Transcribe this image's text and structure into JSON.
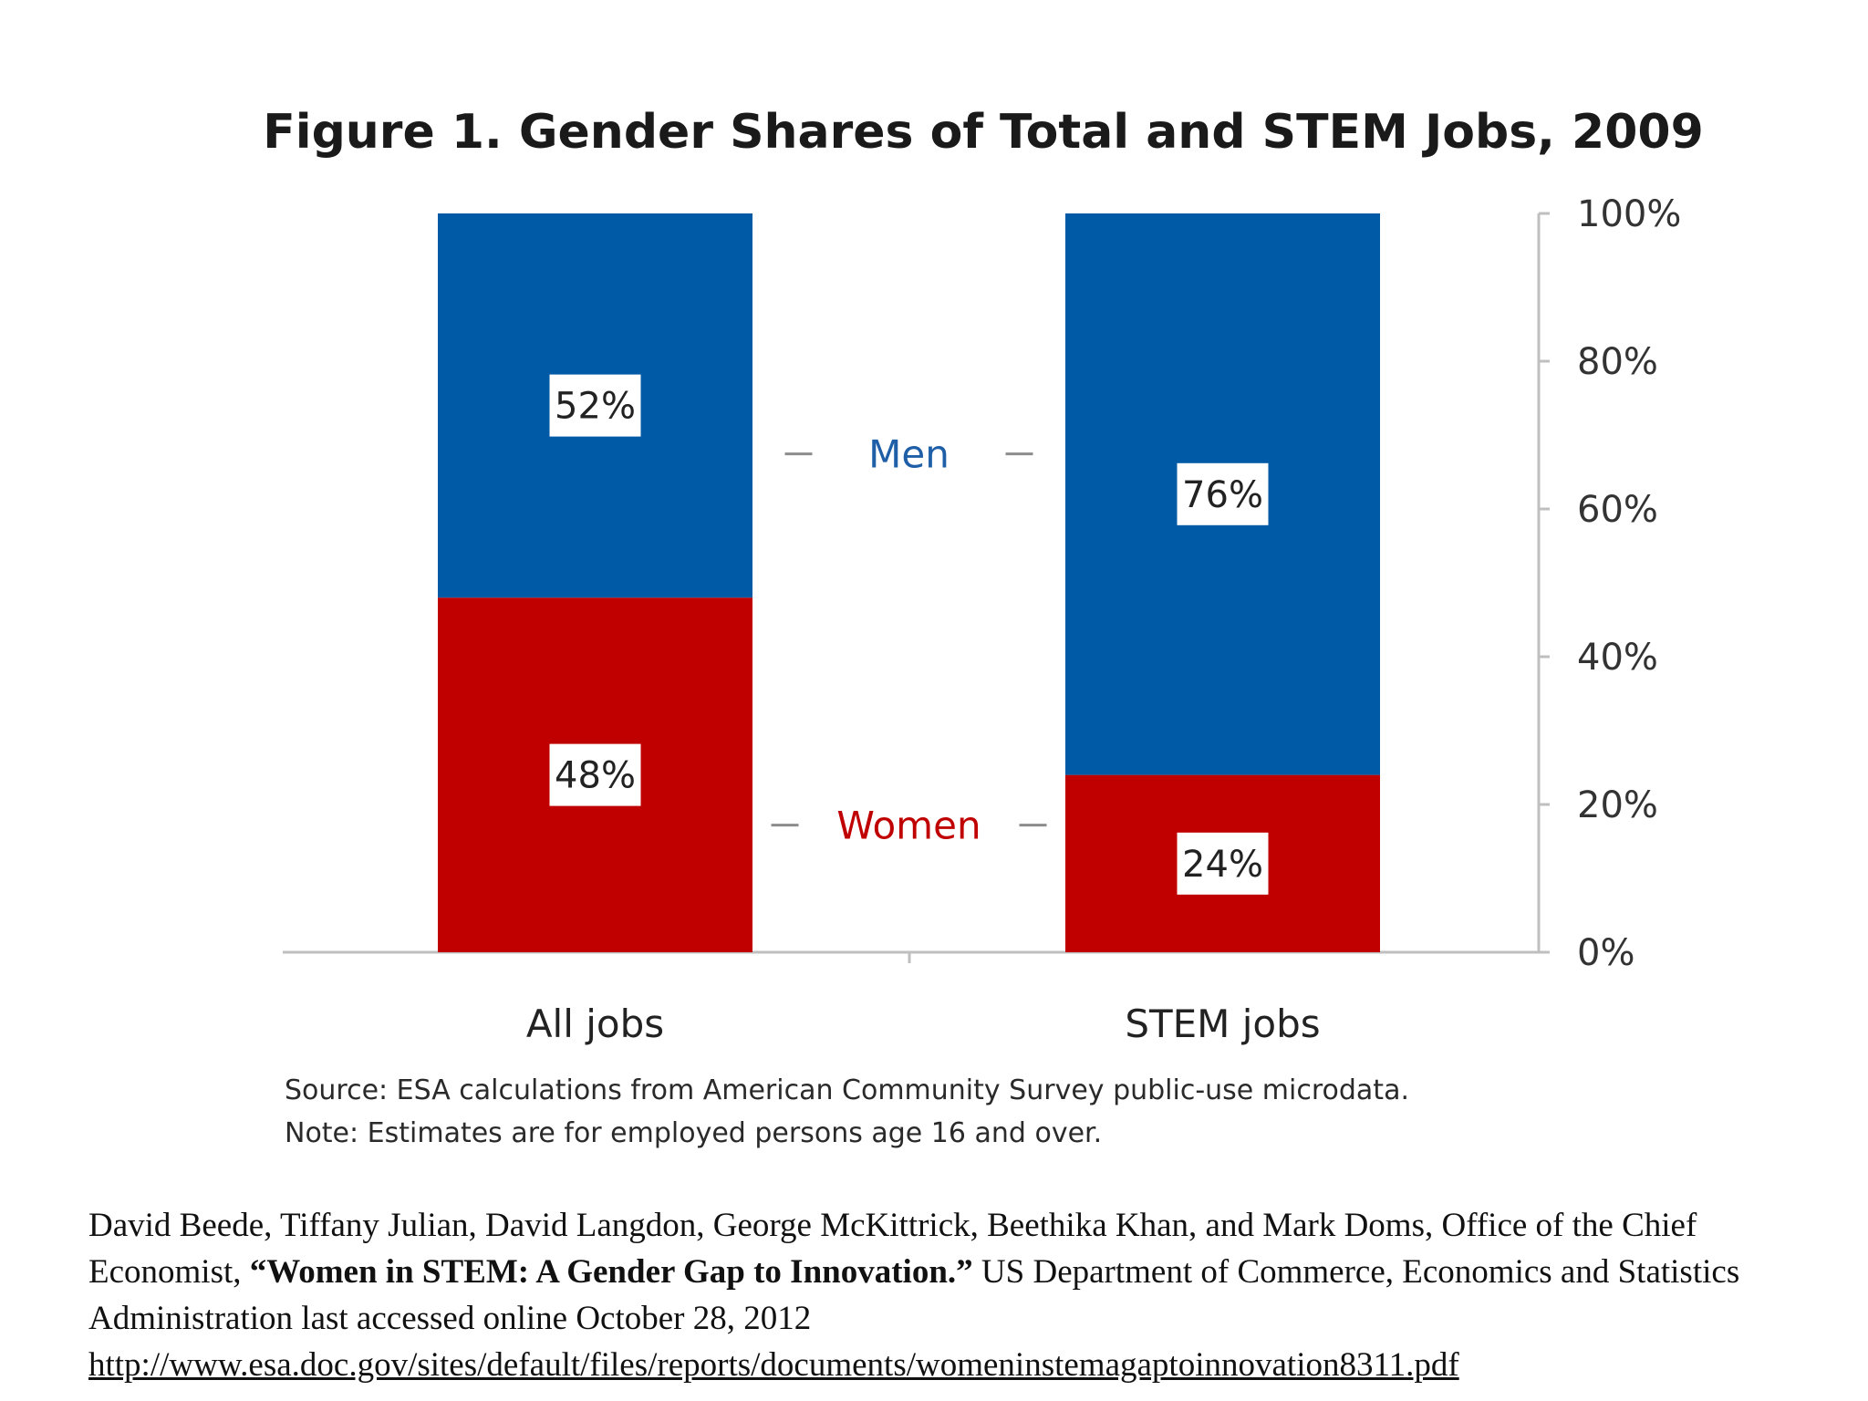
{
  "chart_data": {
    "type": "bar",
    "stacked": true,
    "title": "Figure 1. Gender Shares of Total and STEM Jobs, 2009",
    "categories": [
      "All jobs",
      "STEM jobs"
    ],
    "series": [
      {
        "name": "Women",
        "values": [
          48,
          24
        ],
        "labels": [
          "48%",
          "24%"
        ],
        "color": "#c00000"
      },
      {
        "name": "Men",
        "values": [
          52,
          76
        ],
        "labels": [
          "52%",
          "76%"
        ],
        "color": "#005aa5"
      }
    ],
    "ylim": [
      0,
      100
    ],
    "yticks": [
      0,
      20,
      40,
      60,
      80,
      100
    ],
    "ytick_labels": [
      "0%",
      "20%",
      "40%",
      "60%",
      "80%",
      "100%"
    ],
    "yaxis_position": "right",
    "xlabel": "",
    "ylabel": "",
    "legend": "center, between bars"
  },
  "notes": {
    "source": "Source:  ESA calculations from American Community Survey public-use microdata.",
    "estimates": "Note: Estimates are for employed persons age 16 and over."
  },
  "citation": {
    "authors": "David Beede, Tiffany Julian, David Langdon, George McKittrick, Beethika Khan, and Mark Doms, Office of the Chief Economist, ",
    "title": "“Women in STEM: A Gender Gap to Innovation.”",
    "publisher": " US Department of Commerce, Economics and Statistics Administration last accessed online October 28, 2012 ",
    "url": "http://www.esa.doc.gov/sites/default/files/reports/documents/womeninstemagaptoinnovation8311.pdf"
  }
}
